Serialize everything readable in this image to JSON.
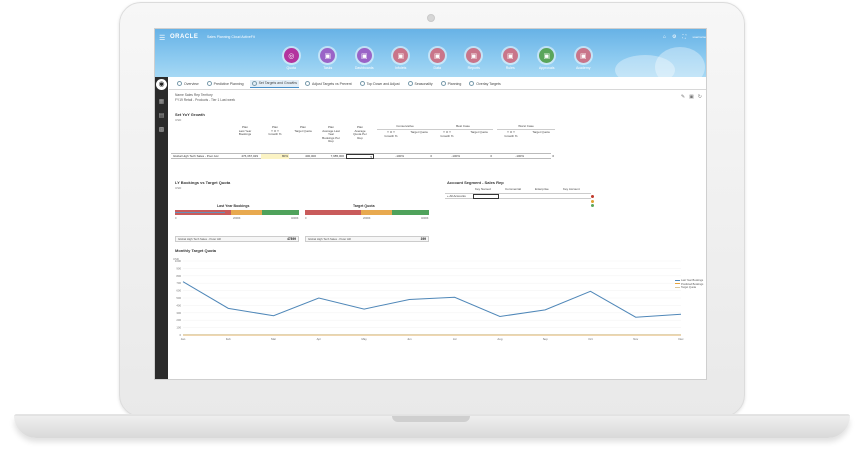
{
  "app": {
    "logo": "ORACLE",
    "title": "Sales Planning Cloud ActiveFit",
    "user": "username"
  },
  "nav": [
    {
      "label": "Quota",
      "icon": "target-icon",
      "color": "#b3349e"
    },
    {
      "label": "Tasks",
      "icon": "tasks-icon",
      "color": "#9a63c7"
    },
    {
      "label": "Dashboards",
      "icon": "dashboard-icon",
      "color": "#9a63c7"
    },
    {
      "label": "Infolets",
      "icon": "infolet-icon",
      "color": "#c9758a"
    },
    {
      "label": "Data",
      "icon": "data-icon",
      "color": "#c9758a"
    },
    {
      "label": "Reports",
      "icon": "reports-icon",
      "color": "#c9758a"
    },
    {
      "label": "Rules",
      "icon": "rules-icon",
      "color": "#c9758a"
    },
    {
      "label": "Approvals",
      "icon": "approvals-icon",
      "color": "#5aa55a"
    },
    {
      "label": "Academy",
      "icon": "academy-icon",
      "color": "#c9758a"
    }
  ],
  "tabs": [
    "Overview",
    "Predictive Planning",
    "Set Targets and Growths",
    "Adjust Targets vs Prevent",
    "Top Down and Adjust",
    "Seasonality",
    "Planning",
    "Overlay Targets"
  ],
  "active_tab": 2,
  "pov": {
    "line1": "Name     Sales Rep Territory",
    "line2": "FY19     Retail - Products - Tier 1    Last week"
  },
  "grid": {
    "title": "Set YoY Growth",
    "unit": "USD",
    "group_headers": [
      "Conservative",
      "Best Case",
      "Worst Case"
    ],
    "col_headers": [
      "Plan\nLast Year\nBookings",
      "Plan\nY O Y\nGrowth %",
      "Plan\nTarget Quota",
      "Plan\nAverage Last\nYear\nBookings Per\nRep",
      "Plan\nAverage\nQuota Per\nRep",
      "Y O Y\nGrowth %",
      "Target Quota",
      "Y O Y\nGrowth %",
      "Target Quota",
      "Y O Y\nGrowth %",
      "Target Quota"
    ],
    "row_label": "Global High Tech Sales - Poor Acc",
    "row_values": [
      "476,367,029",
      "80%",
      "400,000",
      "7,985,000",
      "5",
      "-100%",
      "0",
      "-100%",
      "0",
      "-100%",
      "0"
    ]
  },
  "bullets": {
    "title": "LY Bookings vs Target Quota",
    "unit": "USD",
    "left": {
      "title": "Last Year Bookings",
      "scale": [
        "0",
        "2000K",
        "4000K"
      ],
      "selector": "Global High Tech Sales - Peter Hill",
      "value": "47899"
    },
    "right": {
      "title": "Target Quota",
      "scale": [
        "0",
        "2000K",
        "4000K"
      ],
      "selector": "Global High Tech Sales - Peter Hill",
      "value": "399"
    }
  },
  "account": {
    "title": "Account Segment - Sales Rep",
    "headers": [
      "Key Named",
      "Commercial",
      "Enterprise",
      "Key Account"
    ],
    "row_label": "All Accounts",
    "dot_colors": [
      "#c0392b",
      "#e0a030",
      "#5aa55a"
    ]
  },
  "chart_data": {
    "type": "line",
    "title": "Monthly Target Quota",
    "ylabel": "USD",
    "categories": [
      "Jan",
      "Feb",
      "Mar",
      "Apr",
      "May",
      "Jun",
      "Jul",
      "Aug",
      "Sep",
      "Oct",
      "Nov",
      "Dec"
    ],
    "ylim": [
      0,
      1000
    ],
    "yticks": [
      "0",
      "100",
      "200",
      "300",
      "400",
      "500",
      "600",
      "700",
      "800",
      "900",
      "1000"
    ],
    "series": [
      {
        "name": "Last Year Bookings",
        "color": "#4f87b8",
        "values": [
          720,
          360,
          260,
          500,
          350,
          480,
          510,
          250,
          340,
          590,
          240,
          280
        ]
      },
      {
        "name": "Predicted Bookings",
        "color": "#e8a53c",
        "values": [
          0,
          0,
          0,
          0,
          0,
          0,
          0,
          0,
          0,
          0,
          0,
          0
        ]
      },
      {
        "name": "Target Quota",
        "color": "#d9c79a",
        "values": [
          5,
          5,
          5,
          5,
          5,
          5,
          5,
          5,
          5,
          5,
          5,
          5
        ]
      }
    ]
  }
}
